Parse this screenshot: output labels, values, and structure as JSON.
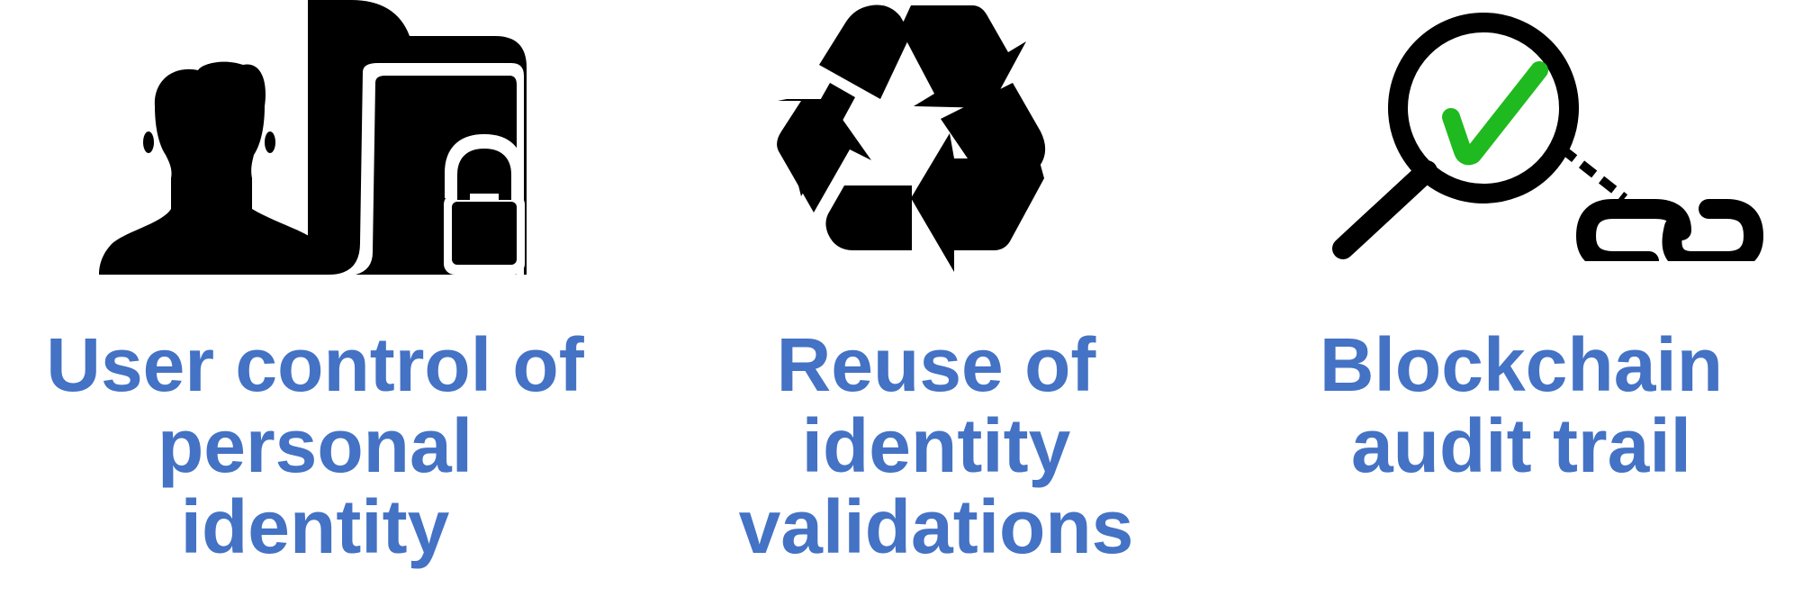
{
  "features": [
    {
      "icon": "person-with-locked-folder-icon",
      "caption_lines": [
        "User control of",
        "personal",
        "identity"
      ]
    },
    {
      "icon": "recycle-icon",
      "caption_lines": [
        "Reuse of",
        "identity",
        "validations"
      ]
    },
    {
      "icon": "magnifier-check-chain-icon",
      "caption_lines": [
        "Blockchain",
        "audit trail"
      ]
    }
  ],
  "colors": {
    "caption": "#4472c4",
    "icon": "#000000",
    "check": "#1fba1f"
  }
}
